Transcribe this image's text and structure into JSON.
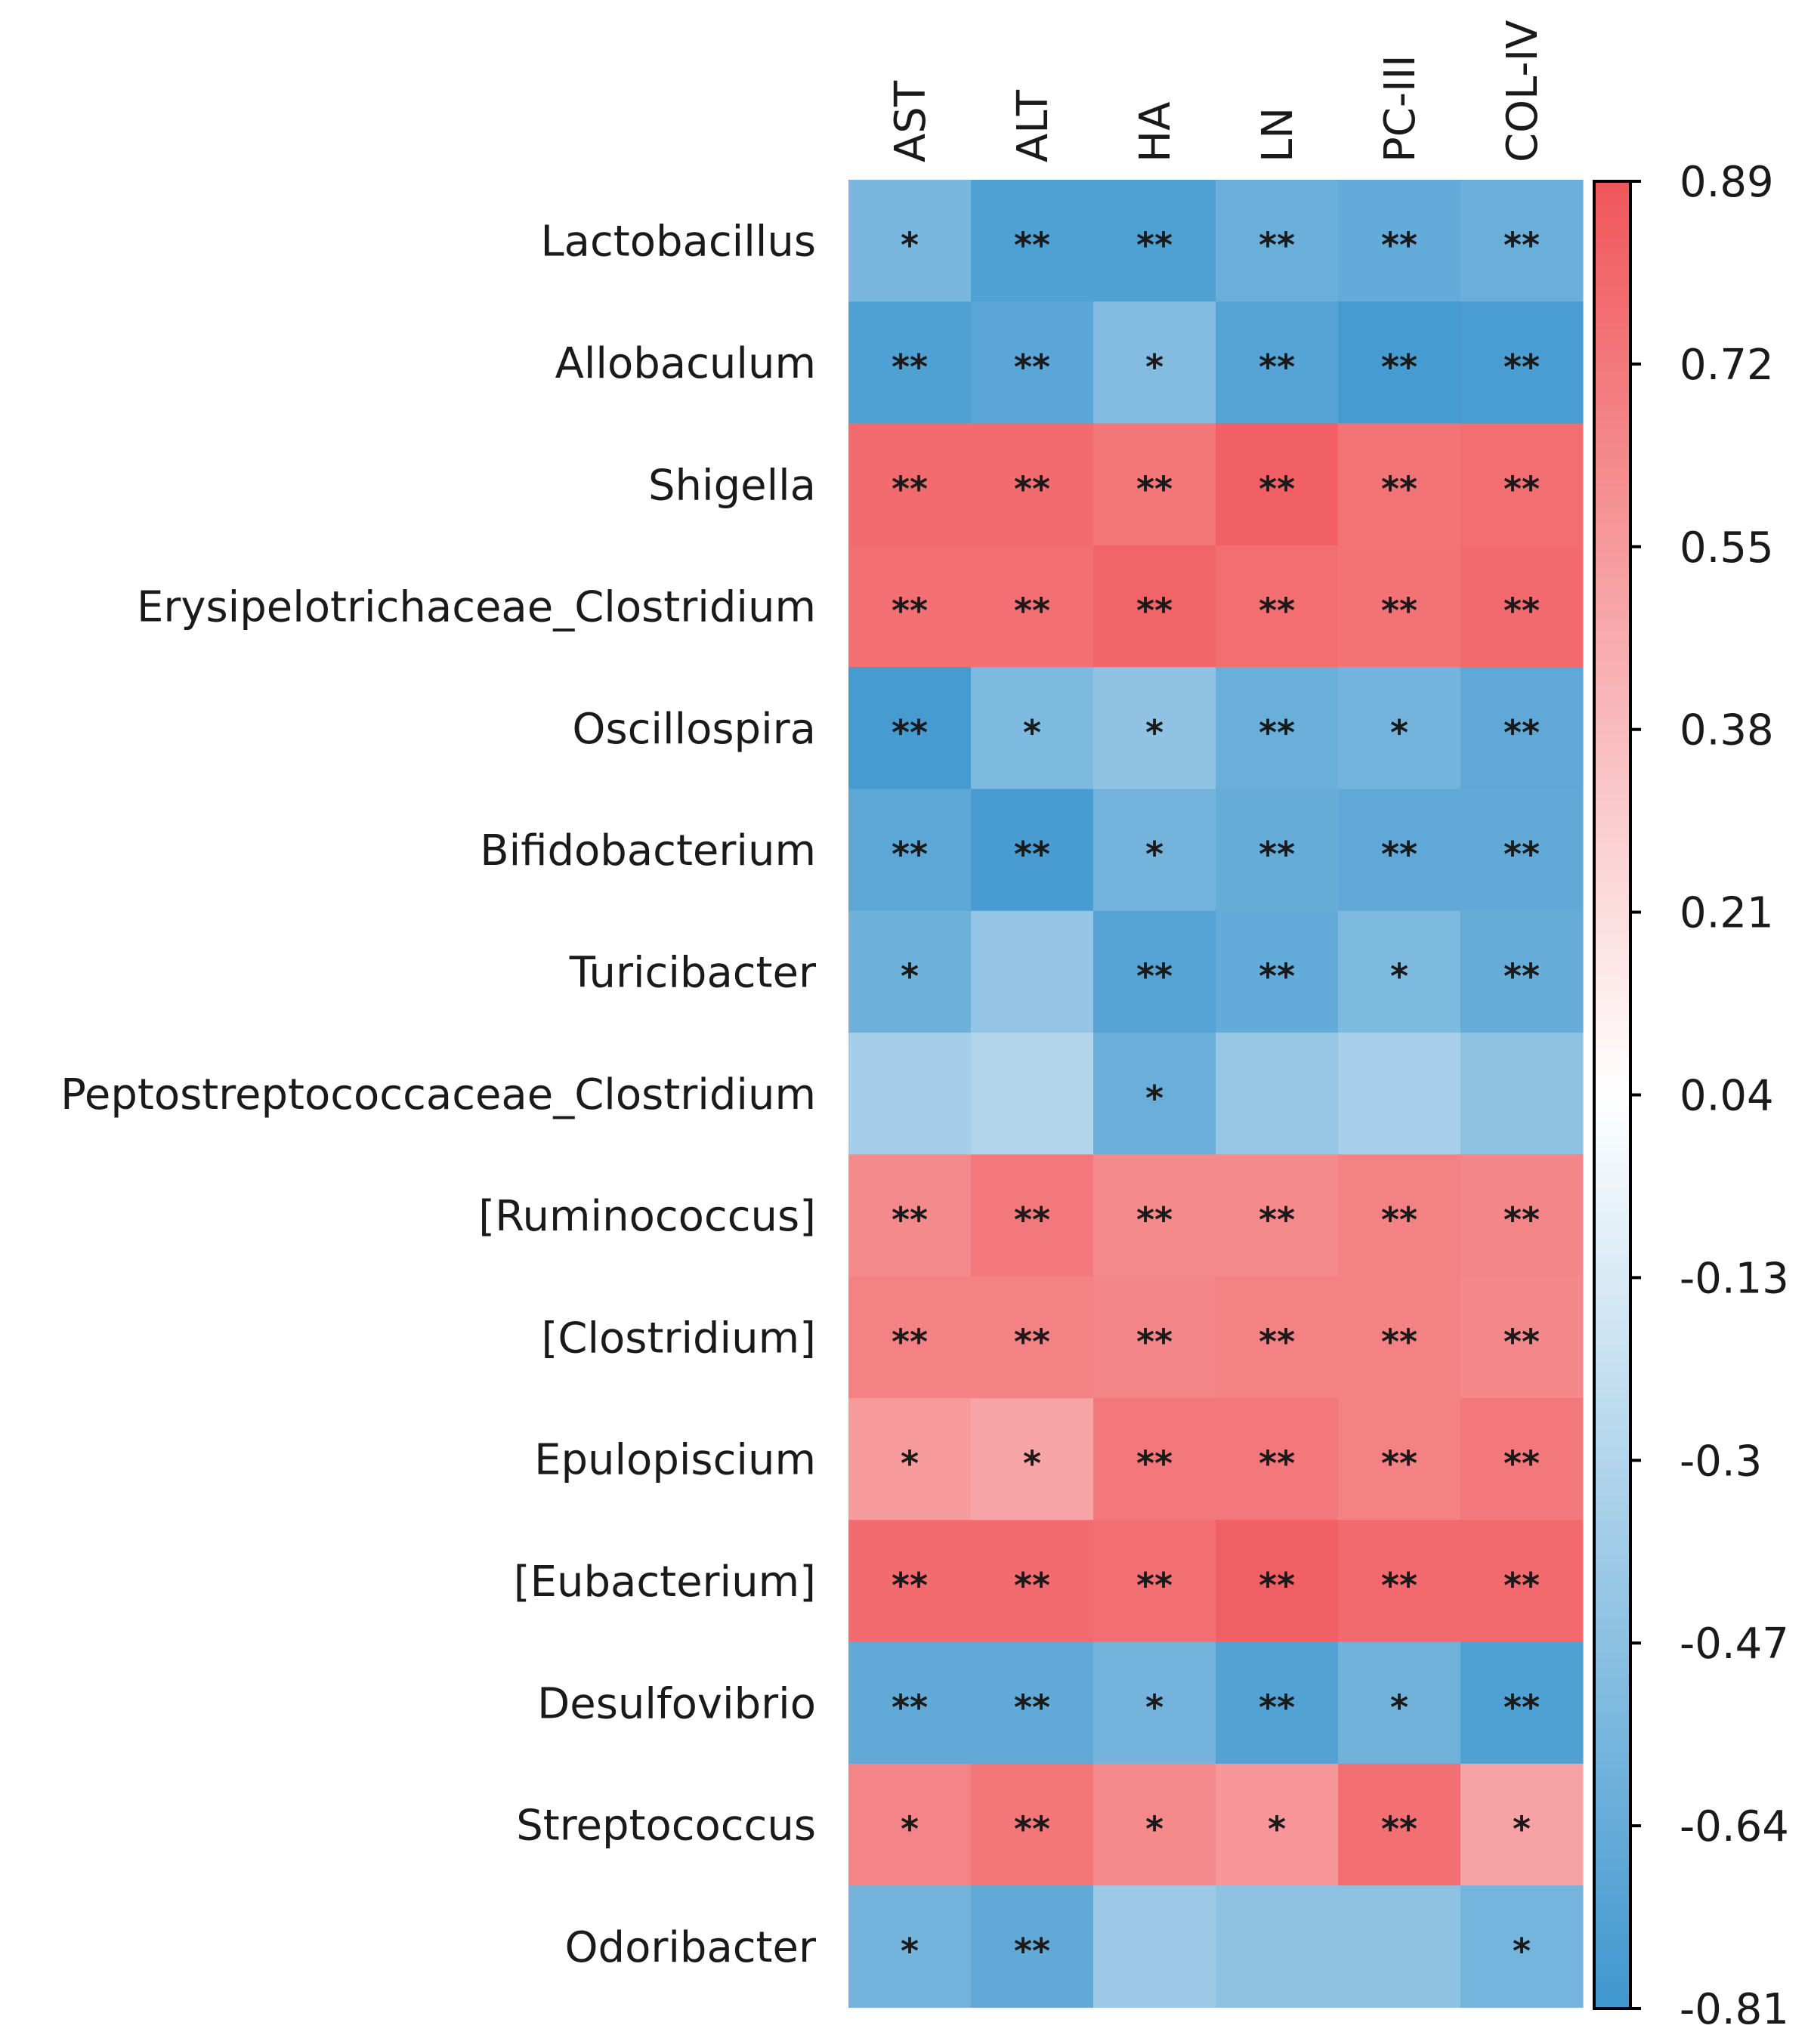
{
  "chart_data": {
    "type": "heatmap",
    "title": "",
    "columns": [
      "AST",
      "ALT",
      "HA",
      "LN",
      "PC-III",
      "COL-IV"
    ],
    "rows": [
      "Lactobacillus",
      "Allobaculum",
      "Shigella",
      "Erysipelotrichaceae_Clostridium",
      "Oscillospira",
      "Bifidobacterium",
      "Turicibacter",
      "Peptostreptococcaceae_Clostridium",
      "[Ruminococcus]",
      "[Clostridium]",
      "Epulopiscium",
      "[Eubacterium]",
      "Desulfovibrio",
      "Streptococcus",
      "Odoribacter"
    ],
    "values": [
      [
        -0.55,
        -0.74,
        -0.74,
        -0.62,
        -0.65,
        -0.62
      ],
      [
        -0.74,
        -0.69,
        -0.51,
        -0.71,
        -0.78,
        -0.76
      ],
      [
        0.78,
        0.78,
        0.73,
        0.84,
        0.74,
        0.77
      ],
      [
        0.76,
        0.76,
        0.82,
        0.77,
        0.75,
        0.79
      ],
      [
        -0.78,
        -0.53,
        -0.45,
        -0.62,
        -0.58,
        -0.67
      ],
      [
        -0.68,
        -0.77,
        -0.58,
        -0.64,
        -0.67,
        -0.66
      ],
      [
        -0.6,
        -0.43,
        -0.71,
        -0.65,
        -0.53,
        -0.64
      ],
      [
        -0.36,
        -0.3,
        -0.62,
        -0.42,
        -0.35,
        -0.46
      ],
      [
        0.63,
        0.72,
        0.63,
        0.63,
        0.67,
        0.65
      ],
      [
        0.67,
        0.67,
        0.65,
        0.67,
        0.67,
        0.64
      ],
      [
        0.55,
        0.5,
        0.72,
        0.72,
        0.67,
        0.72
      ],
      [
        0.78,
        0.78,
        0.76,
        0.84,
        0.79,
        0.79
      ],
      [
        -0.66,
        -0.66,
        -0.58,
        -0.72,
        -0.59,
        -0.74
      ],
      [
        0.66,
        0.73,
        0.63,
        0.57,
        0.76,
        0.51
      ],
      [
        -0.58,
        -0.66,
        -0.4,
        -0.46,
        -0.46,
        -0.57
      ]
    ],
    "significance": [
      [
        "*",
        "**",
        "**",
        "**",
        "**",
        "**"
      ],
      [
        "**",
        "**",
        "*",
        "**",
        "**",
        "**"
      ],
      [
        "**",
        "**",
        "**",
        "**",
        "**",
        "**"
      ],
      [
        "**",
        "**",
        "**",
        "**",
        "**",
        "**"
      ],
      [
        "**",
        "*",
        "*",
        "**",
        "*",
        "**"
      ],
      [
        "**",
        "**",
        "*",
        "**",
        "**",
        "**"
      ],
      [
        "*",
        "",
        "**",
        "**",
        "*",
        "**"
      ],
      [
        "",
        "",
        "*",
        "",
        "",
        ""
      ],
      [
        "**",
        "**",
        "**",
        "**",
        "**",
        "**"
      ],
      [
        "**",
        "**",
        "**",
        "**",
        "**",
        "**"
      ],
      [
        "*",
        "*",
        "**",
        "**",
        "**",
        "**"
      ],
      [
        "**",
        "**",
        "**",
        "**",
        "**",
        "**"
      ],
      [
        "**",
        "**",
        "*",
        "**",
        "*",
        "**"
      ],
      [
        "*",
        "**",
        "*",
        "*",
        "**",
        "*"
      ],
      [
        "*",
        "**",
        "",
        "",
        "",
        "*"
      ]
    ],
    "colorbar": {
      "min": -0.81,
      "max": 0.89,
      "ticks": [
        "0.89",
        "0.72",
        "0.55",
        "0.38",
        "0.21",
        "0.04",
        "-0.13",
        "-0.3",
        "-0.47",
        "-0.64",
        "-0.81"
      ],
      "low_color": "#3f97cf",
      "mid_color": "#ffffff",
      "high_color": "#f0565a"
    }
  }
}
